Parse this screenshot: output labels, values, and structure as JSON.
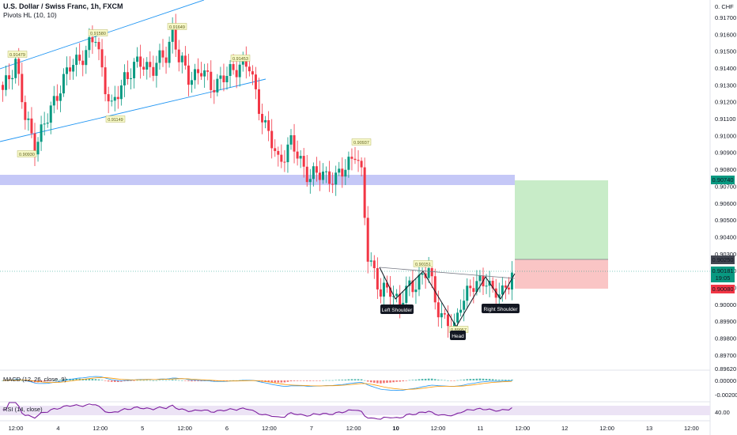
{
  "header": {
    "title": "U.S. Dollar / Swiss Franc, 1h, FXCM",
    "indicator": "Pivots HL (10, 10)"
  },
  "price_axis": {
    "currency_label": "0. CHF",
    "labels": [
      "0.91700",
      "0.91600",
      "0.91500",
      "0.91400",
      "0.91300",
      "0.91200",
      "0.91100",
      "0.91000",
      "0.90900",
      "0.90800",
      "0.90700",
      "0.90600",
      "0.90500",
      "0.90400",
      "0.90300",
      "0.90200",
      "0.90100",
      "0.90000",
      "0.89900",
      "0.89800",
      "0.89700",
      "0.89620"
    ],
    "tags": {
      "target": {
        "value": "0.90740",
        "color": "#089981"
      },
      "entry": {
        "value": "0.90250",
        "color": "#434651"
      },
      "current": {
        "value": "0.90181",
        "countdown": "19:05",
        "color": "#089981"
      },
      "stop": {
        "value": "0.90080",
        "color": "#f23645"
      }
    }
  },
  "time_axis": {
    "labels": [
      "12:00",
      "4",
      "12:00",
      "5",
      "12:00",
      "6",
      "12:00",
      "7",
      "12:00",
      "10",
      "12:00",
      "11",
      "12:00",
      "12",
      "12:00",
      "13",
      "12:00"
    ]
  },
  "pivot_labels": [
    "0.91479",
    "0.91580",
    "0.91649",
    "0.91453",
    "0.91149",
    "0.90930",
    "0.90937",
    "0.90151",
    "0.89957"
  ],
  "pattern_labels": {
    "left_shoulder": "Left Shoulder",
    "head": "Head",
    "right_shoulder": "Right Shoulder"
  },
  "macd": {
    "label": "MACD (12, 26, close, 9)",
    "axis": [
      "0.00000",
      "-0.00200"
    ]
  },
  "rsi": {
    "label": "RSI (14, close)",
    "axis": [
      "40.00"
    ]
  },
  "colors": {
    "up": "#089981",
    "down": "#f23645",
    "channel": "#2196f3",
    "zone": "#c5c8f7",
    "target_fill": "#c8ecc8",
    "stop_fill": "#fac5c5",
    "rsi_line": "#7e1fa0",
    "rsi_band": "#ece3f5",
    "macd_line": "#2196f3",
    "signal_line": "#ff9800"
  },
  "chart_data": {
    "type": "candlestick",
    "symbol": "USD/CHF",
    "timeframe": "1h",
    "ylim": [
      0.8962,
      0.9177
    ],
    "close_path_anchors": [
      {
        "bar": 0,
        "close": 0.9125
      },
      {
        "bar": 4,
        "close": 0.9145
      },
      {
        "bar": 7,
        "close": 0.911
      },
      {
        "bar": 10,
        "close": 0.9095
      },
      {
        "bar": 14,
        "close": 0.911
      },
      {
        "bar": 18,
        "close": 0.913
      },
      {
        "bar": 21,
        "close": 0.914
      },
      {
        "bar": 26,
        "close": 0.915
      },
      {
        "bar": 29,
        "close": 0.9158
      },
      {
        "bar": 32,
        "close": 0.913
      },
      {
        "bar": 34,
        "close": 0.9115
      },
      {
        "bar": 38,
        "close": 0.9135
      },
      {
        "bar": 43,
        "close": 0.9143
      },
      {
        "bar": 47,
        "close": 0.914
      },
      {
        "bar": 51,
        "close": 0.9148
      },
      {
        "bar": 53,
        "close": 0.9163
      },
      {
        "bar": 55,
        "close": 0.9145
      },
      {
        "bar": 58,
        "close": 0.9135
      },
      {
        "bar": 62,
        "close": 0.9138
      },
      {
        "bar": 65,
        "close": 0.913
      },
      {
        "bar": 70,
        "close": 0.9135
      },
      {
        "bar": 74,
        "close": 0.9143
      },
      {
        "bar": 77,
        "close": 0.914
      },
      {
        "bar": 79,
        "close": 0.9125
      },
      {
        "bar": 82,
        "close": 0.9105
      },
      {
        "bar": 86,
        "close": 0.9085
      },
      {
        "bar": 90,
        "close": 0.9095
      },
      {
        "bar": 93,
        "close": 0.9085
      },
      {
        "bar": 96,
        "close": 0.9075
      },
      {
        "bar": 100,
        "close": 0.9078
      },
      {
        "bar": 104,
        "close": 0.9073
      },
      {
        "bar": 108,
        "close": 0.9085
      },
      {
        "bar": 110,
        "close": 0.909
      },
      {
        "bar": 112,
        "close": 0.9075
      },
      {
        "bar": 114,
        "close": 0.903
      },
      {
        "bar": 116,
        "close": 0.902
      },
      {
        "bar": 118,
        "close": 0.9005
      },
      {
        "bar": 121,
        "close": 0.901
      },
      {
        "bar": 124,
        "close": 0.9
      },
      {
        "bar": 127,
        "close": 0.901
      },
      {
        "bar": 130,
        "close": 0.9015
      },
      {
        "bar": 133,
        "close": 0.902
      },
      {
        "bar": 135,
        "close": 0.9003
      },
      {
        "bar": 138,
        "close": 0.899
      },
      {
        "bar": 141,
        "close": 0.8985
      },
      {
        "bar": 143,
        "close": 0.9003
      },
      {
        "bar": 146,
        "close": 0.9008
      },
      {
        "bar": 149,
        "close": 0.9014
      },
      {
        "bar": 151,
        "close": 0.9016
      },
      {
        "bar": 153,
        "close": 0.9005
      },
      {
        "bar": 156,
        "close": 0.9008
      },
      {
        "bar": 159,
        "close": 0.9018
      }
    ],
    "pivot_highs": [
      0.91479,
      0.9158,
      0.91649,
      0.91453,
      0.90937,
      0.90151
    ],
    "pivot_lows": [
      0.9093,
      0.91149,
      0.89957
    ],
    "resistance_zone": [
      0.9072,
      0.9078
    ],
    "long_position": {
      "entry": 0.9025,
      "target": 0.9074,
      "stop": 0.9008
    },
    "last_price": 0.90181,
    "pattern": "Inverse Head and Shoulders"
  }
}
